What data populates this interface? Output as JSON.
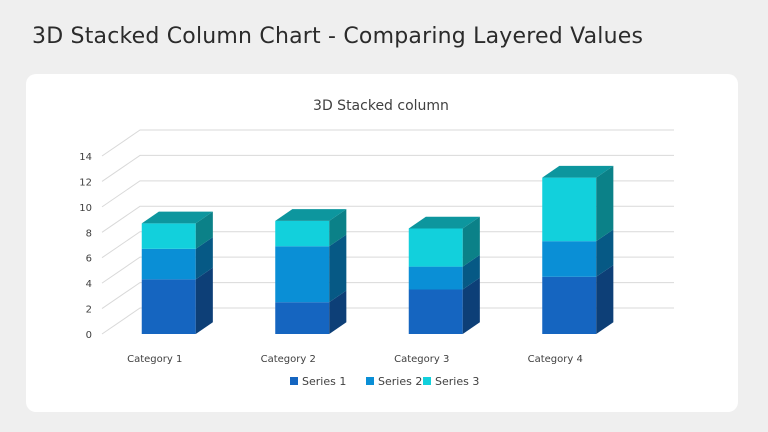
{
  "slide": {
    "title": "3D Stacked Column Chart - Comparing Layered Values"
  },
  "chart_data": {
    "type": "bar",
    "subtype": "3d-stacked-column",
    "title": "3D Stacked column",
    "categories": [
      "Category 1",
      "Category 2",
      "Category 3",
      "Category 4"
    ],
    "series": [
      {
        "name": "Series 1",
        "values": [
          4.3,
          2.5,
          3.5,
          4.5
        ],
        "color": "#1565c0"
      },
      {
        "name": "Series 2",
        "values": [
          2.4,
          4.4,
          1.8,
          2.8
        ],
        "color": "#0a8fd6"
      },
      {
        "name": "Series 3",
        "values": [
          2.0,
          2.0,
          3.0,
          5.0
        ],
        "color": "#12d0dc"
      }
    ],
    "ylim": [
      0,
      14
    ],
    "yticks": [
      0,
      2,
      4,
      6,
      8,
      10,
      12,
      14
    ],
    "grid": true,
    "legend": "bottom"
  }
}
